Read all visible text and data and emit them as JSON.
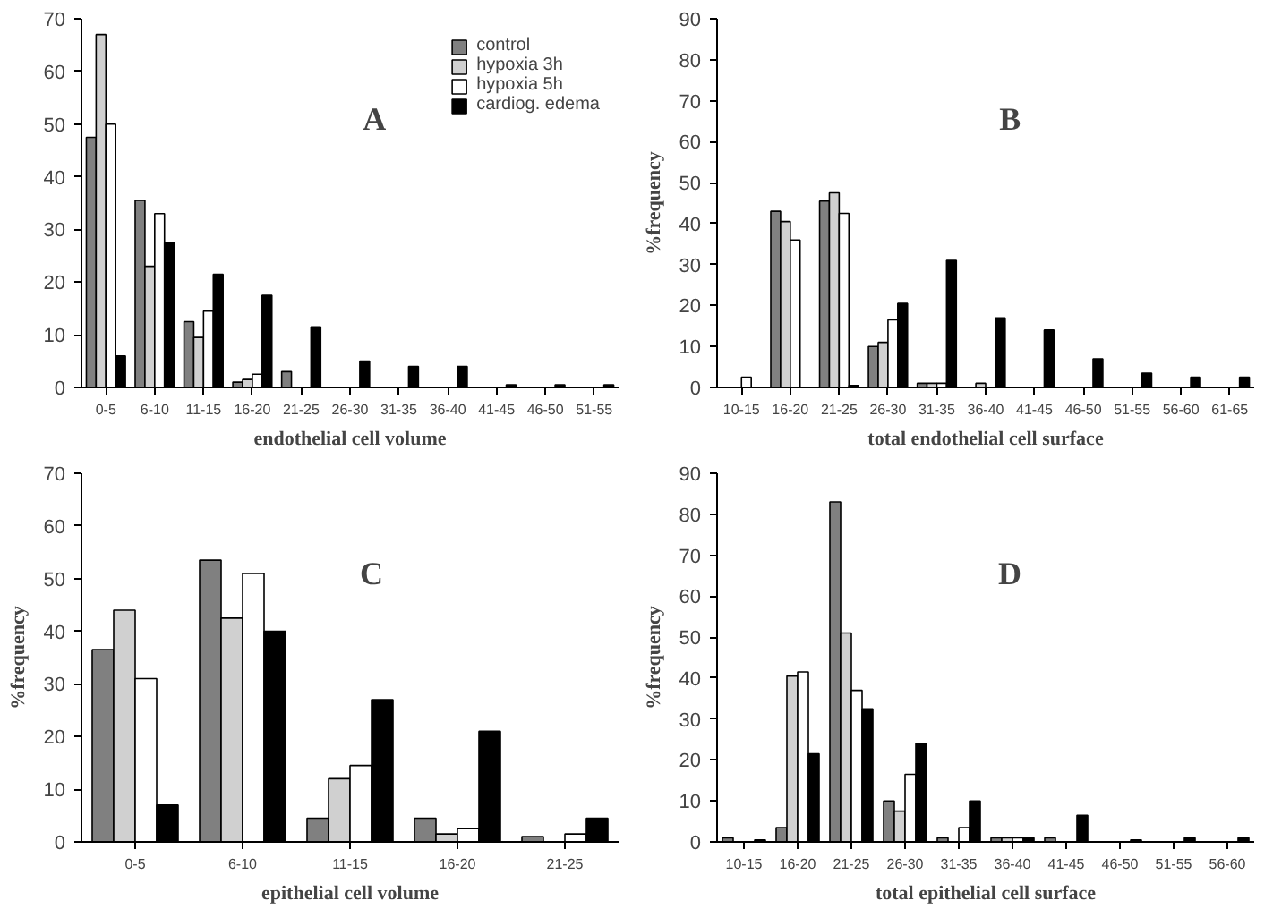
{
  "chart_data": [
    {
      "type": "bar",
      "title": "A",
      "xlabel": "endothelial cell volume",
      "categories": [
        "0-5",
        "6-10",
        "11-15",
        "16-20",
        "21-25",
        "26-30",
        "31-35",
        "36-40",
        "41-45",
        "46-50",
        "51-55"
      ],
      "ylim": [
        0,
        70
      ],
      "yticks": [
        0,
        10,
        20,
        30,
        40,
        50,
        60,
        70
      ],
      "legend": "top right",
      "series": [
        {
          "name": "control",
          "color": "#808080",
          "values": [
            47.5,
            35.5,
            12.5,
            1,
            3,
            0,
            0,
            0,
            0,
            0,
            0
          ]
        },
        {
          "name": "hypoxia 3h",
          "color": "#d0d0d0",
          "values": [
            67,
            23,
            9.5,
            1.5,
            0,
            0,
            0,
            0,
            0,
            0,
            0
          ]
        },
        {
          "name": "hypoxia 5h",
          "color": "#ffffff",
          "values": [
            50,
            33,
            14.5,
            2.5,
            0,
            0,
            0,
            0,
            0,
            0,
            0
          ]
        },
        {
          "name": "cardiog. edema",
          "color": "#000000",
          "values": [
            6,
            27.5,
            21.5,
            17.5,
            11.5,
            5,
            4,
            4,
            0.5,
            0.5,
            0.5
          ]
        }
      ]
    },
    {
      "type": "bar",
      "title": "B",
      "xlabel": "total endothelial cell surface",
      "ylabel": "%frequency",
      "categories": [
        "10-15",
        "16-20",
        "21-25",
        "26-30",
        "31-35",
        "36-40",
        "41-45",
        "46-50",
        "51-55",
        "56-60",
        "61-65"
      ],
      "ylim": [
        0,
        90
      ],
      "yticks": [
        0,
        10,
        20,
        30,
        40,
        50,
        60,
        70,
        80,
        90
      ],
      "series": [
        {
          "color": "#808080",
          "values": [
            0,
            43,
            45.5,
            10,
            1,
            0,
            0,
            0,
            0,
            0,
            0
          ]
        },
        {
          "color": "#d0d0d0",
          "values": [
            0,
            40.5,
            47.5,
            11,
            1,
            1,
            0,
            0,
            0,
            0,
            0
          ]
        },
        {
          "color": "#ffffff",
          "values": [
            2.5,
            36,
            42.5,
            16.5,
            1,
            0,
            0,
            0,
            0,
            0,
            0
          ]
        },
        {
          "color": "#000000",
          "values": [
            0,
            0,
            0.5,
            20.5,
            31,
            17,
            14,
            7,
            3.5,
            2.5,
            2.5
          ]
        }
      ]
    },
    {
      "type": "bar",
      "title": "C",
      "xlabel": "epithelial cell volume",
      "ylabel": "%frequency",
      "categories": [
        "0-5",
        "6-10",
        "11-15",
        "16-20",
        "21-25"
      ],
      "ylim": [
        0,
        70
      ],
      "yticks": [
        0,
        10,
        20,
        30,
        40,
        50,
        60,
        70
      ],
      "series": [
        {
          "color": "#808080",
          "values": [
            36.5,
            53.5,
            4.5,
            4.5,
            1
          ]
        },
        {
          "color": "#d0d0d0",
          "values": [
            44,
            42.5,
            12,
            1.5,
            0
          ]
        },
        {
          "color": "#ffffff",
          "values": [
            31,
            51,
            14.5,
            2.5,
            1.5
          ]
        },
        {
          "color": "#000000",
          "values": [
            7,
            40,
            27,
            21,
            4.5
          ]
        }
      ]
    },
    {
      "type": "bar",
      "title": "D",
      "xlabel": "total epithelial cell surface",
      "ylabel": "%frequency",
      "categories": [
        "10-15",
        "16-20",
        "21-25",
        "26-30",
        "31-35",
        "36-40",
        "41-45",
        "46-50",
        "51-55",
        "56-60"
      ],
      "ylim": [
        0,
        90
      ],
      "yticks": [
        0,
        10,
        20,
        30,
        40,
        50,
        60,
        70,
        80,
        90
      ],
      "series": [
        {
          "color": "#808080",
          "values": [
            1,
            3.5,
            83,
            10,
            1,
            1,
            1,
            0,
            0,
            0
          ]
        },
        {
          "color": "#d0d0d0",
          "values": [
            0,
            40.5,
            51,
            7.5,
            0,
            1,
            0,
            0,
            0,
            0
          ]
        },
        {
          "color": "#ffffff",
          "values": [
            0,
            41.5,
            37,
            16.5,
            3.5,
            1,
            0,
            0,
            0,
            0
          ]
        },
        {
          "color": "#000000",
          "values": [
            0.5,
            21.5,
            32.5,
            24,
            10,
            1,
            6.5,
            0.5,
            1,
            1
          ]
        }
      ]
    }
  ]
}
